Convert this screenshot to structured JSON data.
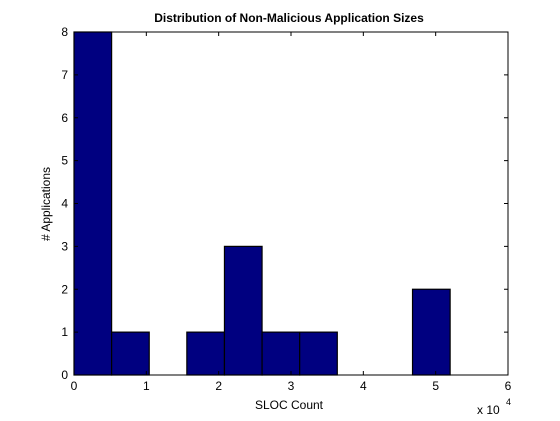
{
  "chart_data": {
    "type": "bar",
    "title": "Distribution of Non-Malicious Application Sizes",
    "xlabel": "SLOC Count",
    "ylabel": "# Applications",
    "x_multiplier_base": "x 10",
    "x_multiplier_exponent": "4",
    "xlim": [
      0,
      6
    ],
    "ylim": [
      0,
      8
    ],
    "xticks": [
      "0",
      "1",
      "2",
      "3",
      "4",
      "5",
      "6"
    ],
    "yticks": [
      "0",
      "1",
      "2",
      "3",
      "4",
      "5",
      "6",
      "7",
      "8"
    ],
    "bin_width": 0.52,
    "bins": [
      {
        "center": 0.26,
        "value": 8
      },
      {
        "center": 0.78,
        "value": 1
      },
      {
        "center": 1.82,
        "value": 1
      },
      {
        "center": 2.34,
        "value": 3
      },
      {
        "center": 2.86,
        "value": 1
      },
      {
        "center": 3.38,
        "value": 1
      },
      {
        "center": 4.94,
        "value": 2
      }
    ],
    "bar_color": "#000080",
    "bar_edge_color": "#000000",
    "grid": false
  }
}
